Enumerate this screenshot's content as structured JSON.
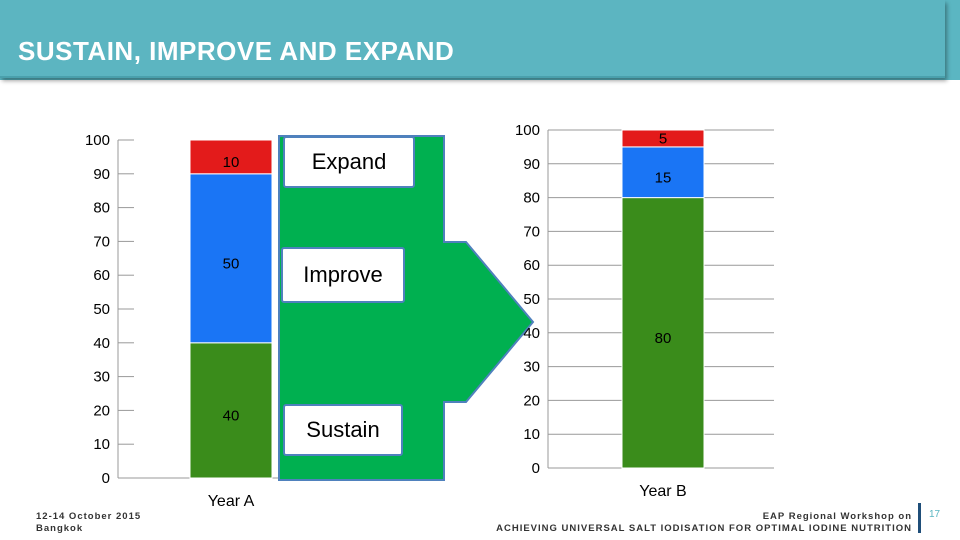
{
  "header": {
    "title": "SUSTAIN, IMPROVE AND EXPAND"
  },
  "labels": {
    "expand": "Expand",
    "improve": "Improve",
    "sustain": "Sustain"
  },
  "colors": {
    "sustain": "#3a8c1b",
    "improve": "#1a75f5",
    "expand": "#e31b1b",
    "arrow": "#00b050",
    "arrow_border": "#4f81bd"
  },
  "chart_data": [
    {
      "type": "bar",
      "stacked": true,
      "categories": [
        "Year A"
      ],
      "series": [
        {
          "name": "Sustain",
          "values": [
            40
          ]
        },
        {
          "name": "Improve",
          "values": [
            50
          ]
        },
        {
          "name": "Expand",
          "values": [
            10
          ]
        }
      ],
      "ylim": [
        0,
        100
      ],
      "yticks": [
        0,
        10,
        20,
        30,
        40,
        50,
        60,
        70,
        80,
        90,
        100
      ]
    },
    {
      "type": "bar",
      "stacked": true,
      "categories": [
        "Year B"
      ],
      "series": [
        {
          "name": "Sustain",
          "values": [
            80
          ]
        },
        {
          "name": "Improve",
          "values": [
            15
          ]
        },
        {
          "name": "Expand",
          "values": [
            5
          ]
        }
      ],
      "ylim": [
        0,
        100
      ],
      "yticks": [
        0,
        10,
        20,
        30,
        40,
        50,
        60,
        70,
        80,
        90,
        100
      ]
    }
  ],
  "footer": {
    "date": "12-14 October 2015",
    "location": "Bangkok",
    "event": "EAP Regional Workshop on",
    "subtitle": "ACHIEVING UNIVERSAL SALT IODISATION FOR OPTIMAL IODINE NUTRITION",
    "page": "17"
  }
}
